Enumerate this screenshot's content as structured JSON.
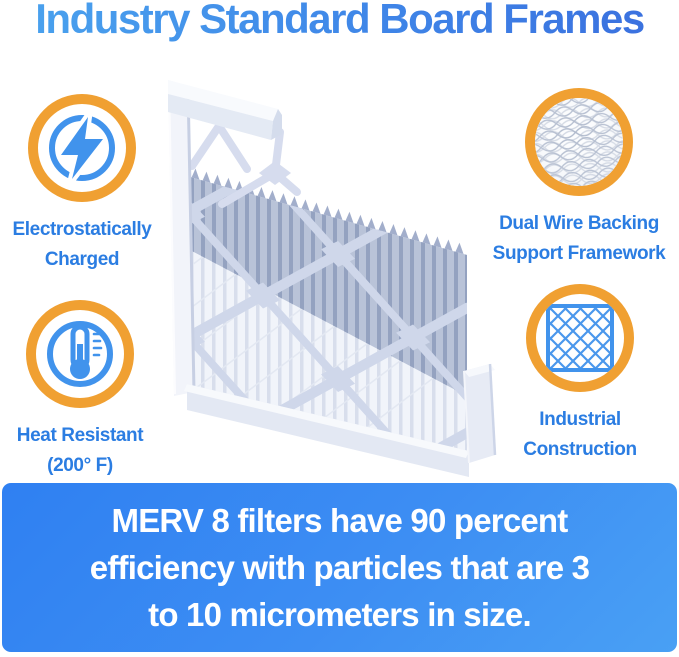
{
  "page": {
    "title": "Industry Standard Board Frames"
  },
  "features": [
    {
      "icon": "lightning-icon",
      "label_line1": "Electrostatically",
      "label_line2": "Charged"
    },
    {
      "icon": "wire-mesh-icon",
      "label_line1": "Dual Wire Backing",
      "label_line2": "Support Framework"
    },
    {
      "icon": "thermometer-icon",
      "label_line1": "Heat Resistant",
      "label_line2": "(200° F)"
    },
    {
      "icon": "lattice-grid-icon",
      "label_line1": "Industrial",
      "label_line2": "Construction"
    }
  ],
  "banner": {
    "line1": "MERV 8 filters have 90 percent",
    "line2": "efficiency with particles that are 3",
    "line3": "to 10 micrometers in size."
  },
  "colors": {
    "title_blue_start": "#4aa3ee",
    "title_blue_end": "#3a6fde",
    "label_blue": "#2b7de2",
    "ring_orange": "#f0a032",
    "icon_blue": "#4193ec",
    "banner_blue_start": "#2f80f2",
    "banner_blue_end": "#49a0f4",
    "banner_text": "#ffffff",
    "filter_frame_light": "#f2f4fa",
    "filter_pleat_gray": "#a6b2cd"
  }
}
